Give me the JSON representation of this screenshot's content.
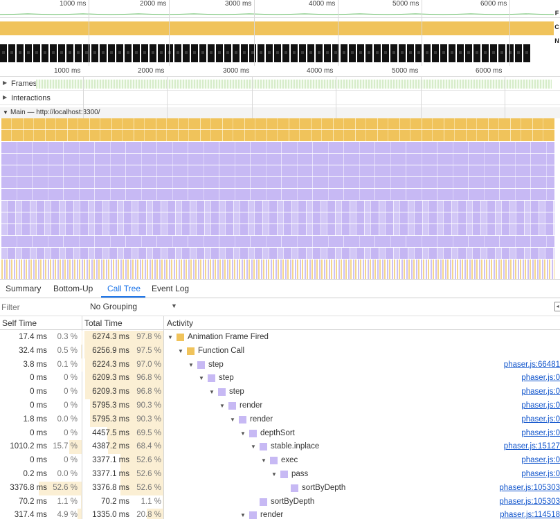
{
  "colors": {
    "scripting": "#f0c35b",
    "rendering": "#c7b9f4",
    "frames": "#d6ecc9",
    "accent": "#1a73e8",
    "bar_bg": "#fbefd4"
  },
  "overview": {
    "ticks": [
      "1000 ms",
      "2000 ms",
      "3000 ms",
      "4000 ms",
      "5000 ms",
      "6000 ms"
    ],
    "fps_label": "F",
    "cpu_label": "C",
    "net_label": "N"
  },
  "timeline": {
    "ticks": [
      "1000 ms",
      "2000 ms",
      "3000 ms",
      "4000 ms",
      "5000 ms",
      "6000 ms"
    ],
    "frames_label": "Frames",
    "interactions_label": "Interactions",
    "main_label": "Main — http://localhost:3300/"
  },
  "tabs": [
    "Summary",
    "Bottom-Up",
    "Call Tree",
    "Event Log"
  ],
  "active_tab": "Call Tree",
  "filter": {
    "placeholder": "Filter",
    "grouping": "No Grouping",
    "grouping_caret": "▼",
    "collapse_icon": "◂"
  },
  "columns": {
    "self": "Self Time",
    "total": "Total Time",
    "activity": "Activity"
  },
  "rows": [
    {
      "self_ms": "17.4 ms",
      "self_pct": "0.3 %",
      "self_frac": 0.003,
      "total_ms": "6274.3 ms",
      "total_pct": "97.8 %",
      "total_frac": 0.978,
      "depth": 0,
      "expand": "▼",
      "color": "y",
      "name": "Animation Frame Fired",
      "link": ""
    },
    {
      "self_ms": "32.4 ms",
      "self_pct": "0.5 %",
      "self_frac": 0.005,
      "total_ms": "6256.9 ms",
      "total_pct": "97.5 %",
      "total_frac": 0.975,
      "depth": 1,
      "expand": "▼",
      "color": "y",
      "name": "Function Call",
      "link": ""
    },
    {
      "self_ms": "3.8 ms",
      "self_pct": "0.1 %",
      "self_frac": 0.001,
      "total_ms": "6224.3 ms",
      "total_pct": "97.0 %",
      "total_frac": 0.97,
      "depth": 2,
      "expand": "▼",
      "color": "p",
      "name": "step",
      "link": "phaser.js:66481"
    },
    {
      "self_ms": "0 ms",
      "self_pct": "0 %",
      "self_frac": 0,
      "total_ms": "6209.3 ms",
      "total_pct": "96.8 %",
      "total_frac": 0.968,
      "depth": 3,
      "expand": "▼",
      "color": "p",
      "name": "step",
      "link": "phaser.js:0"
    },
    {
      "self_ms": "0 ms",
      "self_pct": "0 %",
      "self_frac": 0,
      "total_ms": "6209.3 ms",
      "total_pct": "96.8 %",
      "total_frac": 0.968,
      "depth": 4,
      "expand": "▼",
      "color": "p",
      "name": "step",
      "link": "phaser.js:0"
    },
    {
      "self_ms": "0 ms",
      "self_pct": "0 %",
      "self_frac": 0,
      "total_ms": "5795.3 ms",
      "total_pct": "90.3 %",
      "total_frac": 0.903,
      "depth": 5,
      "expand": "▼",
      "color": "p",
      "name": "render",
      "link": "phaser.js:0"
    },
    {
      "self_ms": "1.8 ms",
      "self_pct": "0.0 %",
      "self_frac": 0.0003,
      "total_ms": "5795.3 ms",
      "total_pct": "90.3 %",
      "total_frac": 0.903,
      "depth": 6,
      "expand": "▼",
      "color": "p",
      "name": "render",
      "link": "phaser.js:0"
    },
    {
      "self_ms": "0 ms",
      "self_pct": "0 %",
      "self_frac": 0,
      "total_ms": "4457.5 ms",
      "total_pct": "69.5 %",
      "total_frac": 0.695,
      "depth": 7,
      "expand": "▼",
      "color": "p",
      "name": "depthSort",
      "link": "phaser.js:0"
    },
    {
      "self_ms": "1010.2 ms",
      "self_pct": "15.7 %",
      "self_frac": 0.157,
      "total_ms": "4387.2 ms",
      "total_pct": "68.4 %",
      "total_frac": 0.684,
      "depth": 8,
      "expand": "▼",
      "color": "p",
      "name": "stable.inplace",
      "link": "phaser.js:15127"
    },
    {
      "self_ms": "0 ms",
      "self_pct": "0 %",
      "self_frac": 0,
      "total_ms": "3377.1 ms",
      "total_pct": "52.6 %",
      "total_frac": 0.526,
      "depth": 9,
      "expand": "▼",
      "color": "p",
      "name": "exec",
      "link": "phaser.js:0"
    },
    {
      "self_ms": "0.2 ms",
      "self_pct": "0.0 %",
      "self_frac": 3e-05,
      "total_ms": "3377.1 ms",
      "total_pct": "52.6 %",
      "total_frac": 0.526,
      "depth": 10,
      "expand": "▼",
      "color": "p",
      "name": "pass",
      "link": "phaser.js:0"
    },
    {
      "self_ms": "3376.8 ms",
      "self_pct": "52.6 %",
      "self_frac": 0.526,
      "total_ms": "3376.8 ms",
      "total_pct": "52.6 %",
      "total_frac": 0.526,
      "depth": 11,
      "expand": "",
      "color": "p",
      "name": "sortByDepth",
      "link": "phaser.js:105303"
    },
    {
      "self_ms": "70.2 ms",
      "self_pct": "1.1 %",
      "self_frac": 0.011,
      "total_ms": "70.2 ms",
      "total_pct": "1.1 %",
      "total_frac": 0.011,
      "depth": 8,
      "expand": "",
      "color": "p",
      "name": "sortByDepth",
      "link": "phaser.js:105303"
    },
    {
      "self_ms": "317.4 ms",
      "self_pct": "4.9 %",
      "self_frac": 0.049,
      "total_ms": "1335.0 ms",
      "total_pct": "20.8 %",
      "total_frac": 0.208,
      "depth": 7,
      "expand": "▼",
      "color": "p",
      "name": "render",
      "link": "phaser.js:114518"
    }
  ]
}
